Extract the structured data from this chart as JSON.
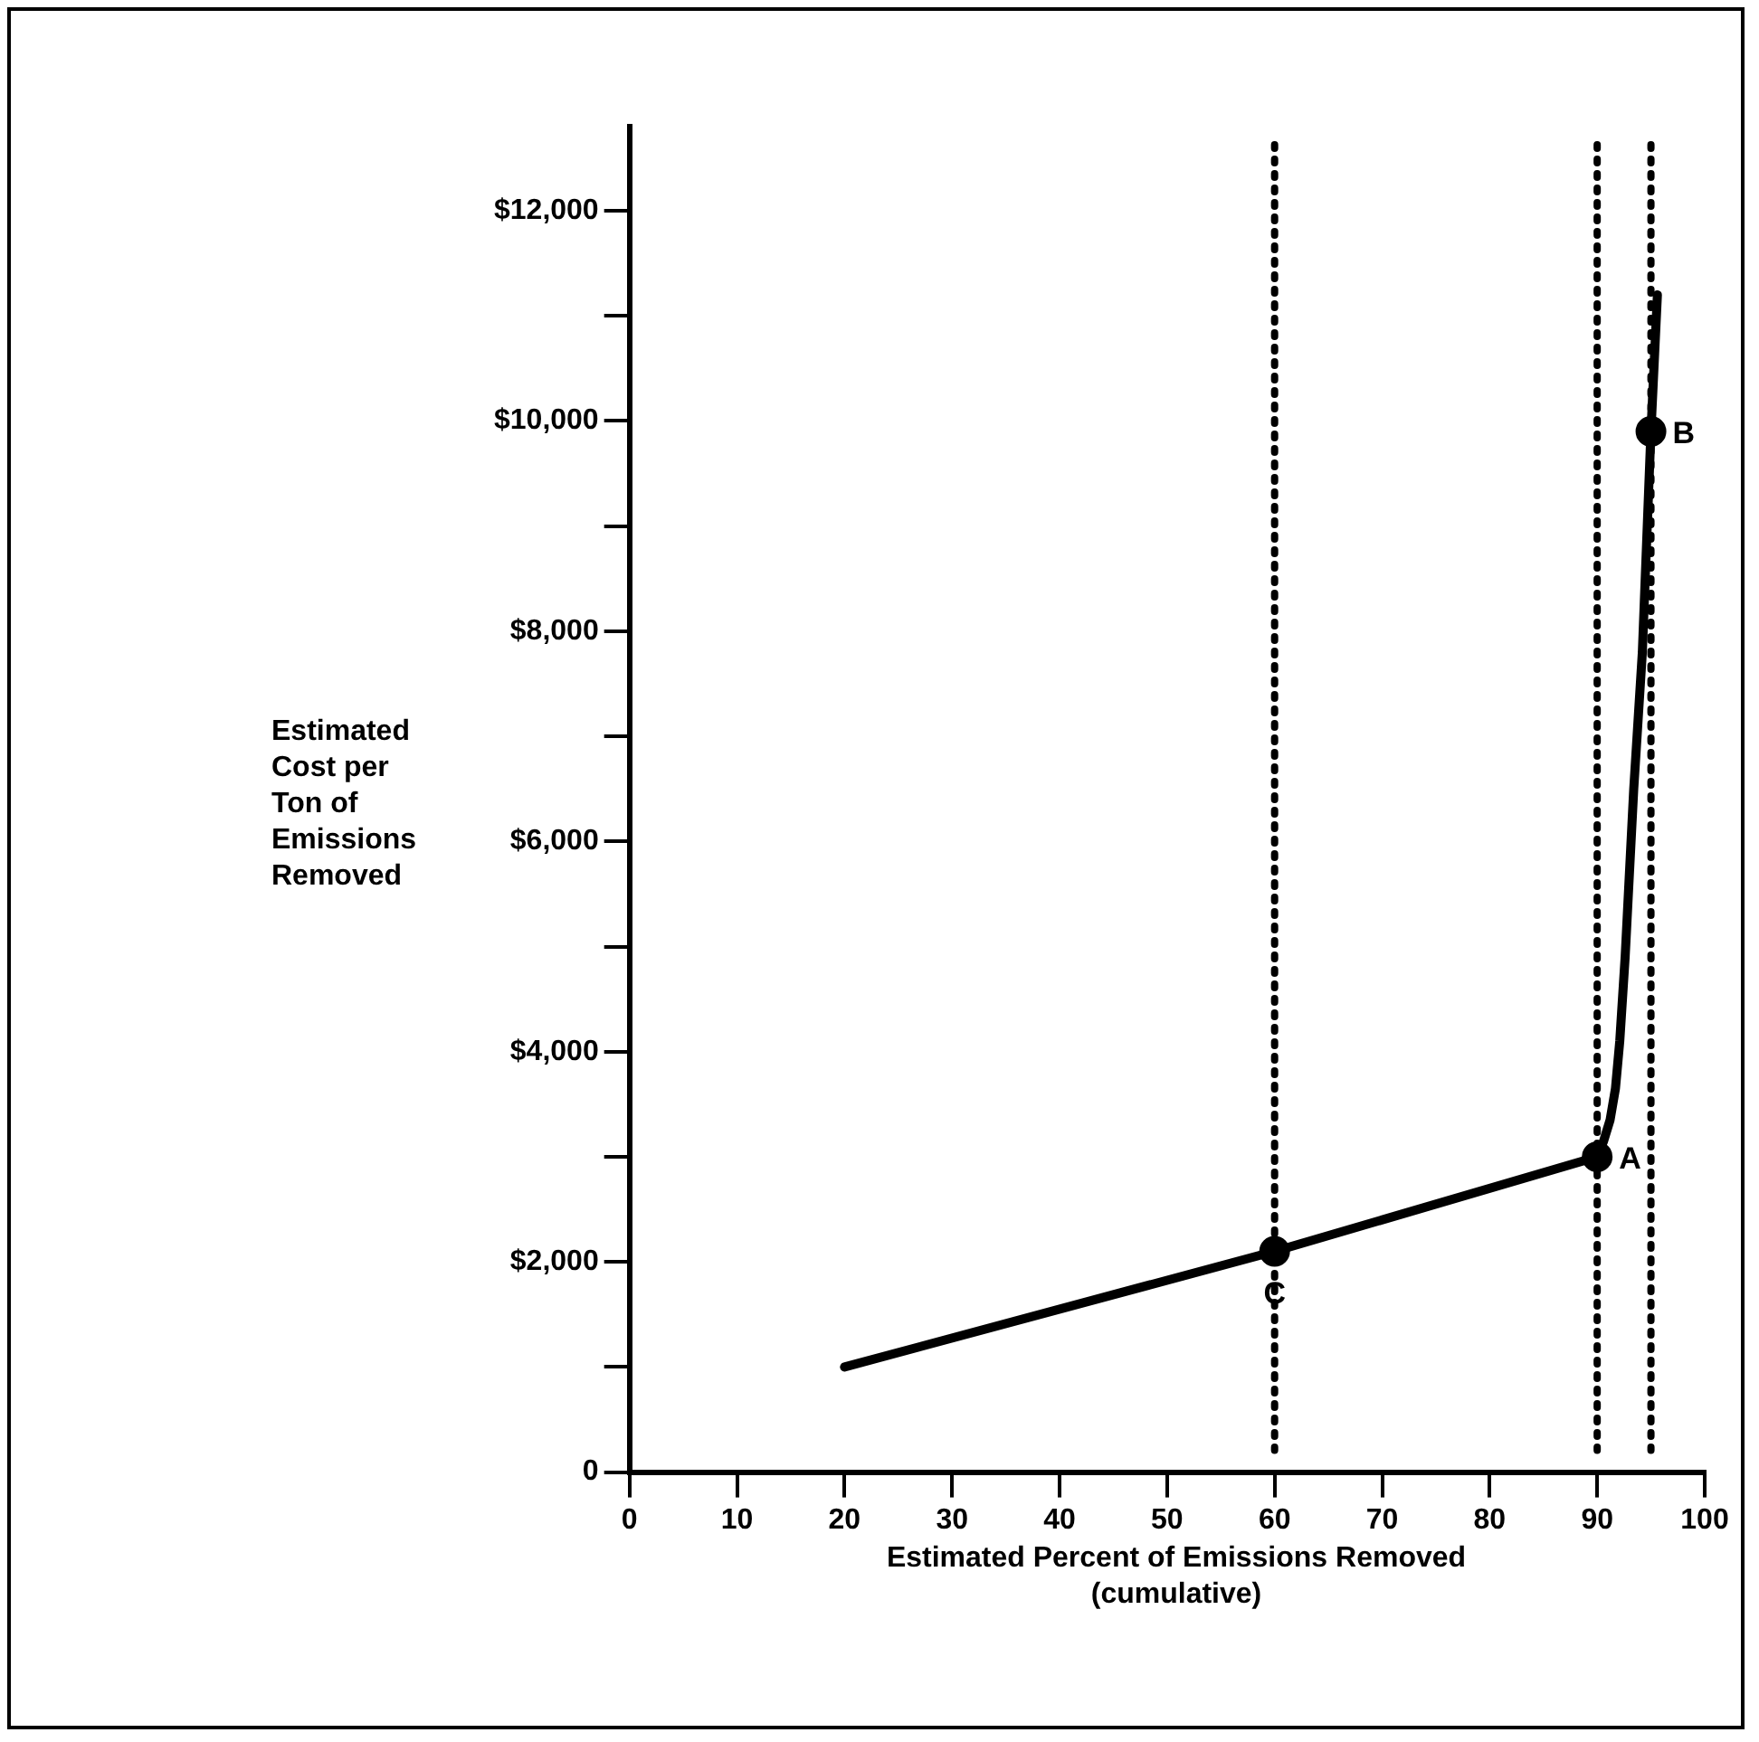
{
  "chart_data": {
    "type": "line",
    "xlabel": "Estimated Percent of Emissions Removed\n(cumulative)",
    "ylabel": "Estimated\nCost per\nTon of\nEmissions\nRemoved",
    "series": [
      {
        "type": "line",
        "color": "#000000",
        "marker": "none",
        "x": [
          20,
          60,
          90,
          90.6,
          91.2,
          91.7,
          92.1,
          92.6,
          93.4,
          94.2,
          95,
          95.6
        ],
        "values": [
          1000,
          2100,
          3000,
          3150,
          3350,
          3650,
          4100,
          4900,
          6500,
          7800,
          9900,
          11200
        ]
      },
      {
        "type": "scatter",
        "color": "#000000",
        "marker": "circle",
        "x": [
          60,
          90,
          95
        ],
        "values": [
          2100,
          3000,
          9900
        ]
      }
    ],
    "annotations": [
      {
        "text": "C",
        "x": 60,
        "y": 2100
      },
      {
        "text": "A",
        "x": 90,
        "y": 3000
      },
      {
        "text": "B",
        "x": 95,
        "y": 9900
      }
    ],
    "ref_lines": [
      {
        "axis": "x",
        "value": 60,
        "color": "#000000",
        "line_style": "dotted"
      },
      {
        "axis": "x",
        "value": 90,
        "color": "#000000",
        "line_style": "dotted"
      },
      {
        "axis": "x",
        "value": 95,
        "color": "#000000",
        "line_style": "dotted"
      }
    ],
    "xlim": [
      0,
      100
    ],
    "xticks": [
      0,
      10,
      20,
      30,
      40,
      50,
      60,
      70,
      80,
      90,
      100
    ],
    "ylim": [
      0,
      12800
    ],
    "yticks": [
      0,
      {
        "value": 1000,
        "label": null
      },
      {
        "value": 2000,
        "label": "$2,000"
      },
      {
        "value": 3000,
        "label": null
      },
      {
        "value": 4000,
        "label": "$4,000"
      },
      {
        "value": 5000,
        "label": null
      },
      {
        "value": 6000,
        "label": "$6,000"
      },
      {
        "value": 7000,
        "label": null
      },
      {
        "value": 8000,
        "label": "$8,000"
      },
      {
        "value": 9000,
        "label": null
      },
      {
        "value": 10000,
        "label": "$10,000"
      },
      {
        "value": 11000,
        "label": null
      },
      {
        "value": 12000,
        "label": "$12,000"
      }
    ],
    "grid": false,
    "legend": false
  }
}
